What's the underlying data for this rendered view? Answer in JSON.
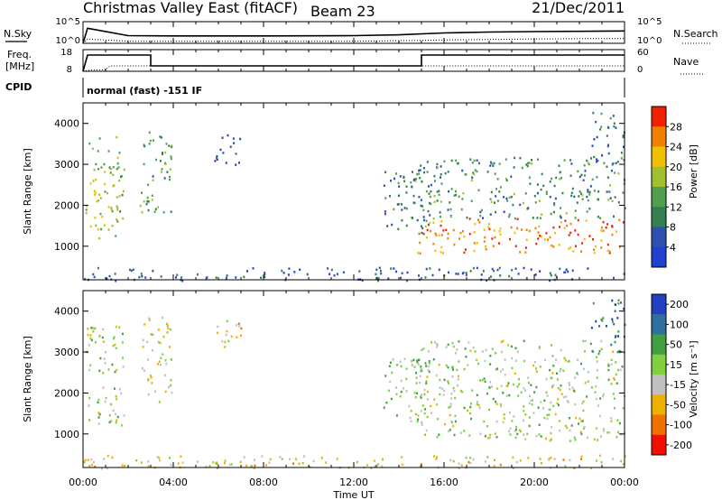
{
  "header": {
    "title": "Christmas Valley East (fitACF)",
    "beam": "Beam 23",
    "date": "21/Dec/2011"
  },
  "noise_panel": {
    "left_label": "N.Sky",
    "right_label": "N.Search",
    "left_ticks": [
      "10^5",
      "10^0"
    ],
    "right_ticks": [
      "10^5",
      "10^0"
    ]
  },
  "freq_panel": {
    "left_label_1": "Freq.",
    "left_label_2": "[MHz]",
    "right_label": "Nave",
    "left_ticks": [
      "18",
      "8"
    ],
    "right_ticks": [
      "60",
      "0"
    ]
  },
  "cpid": {
    "label": "CPID",
    "mode": "normal (fast) -151 IF"
  },
  "power_panel": {
    "ylabel": "Slant Range [km]",
    "yticks": [
      "1000",
      "2000",
      "3000",
      "4000"
    ],
    "cbar_label": "Power [dB]",
    "cbar_ticks": [
      "4",
      "8",
      "12",
      "16",
      "20",
      "24",
      "28"
    ],
    "colors": [
      "#2040d0",
      "#3050b0",
      "#308050",
      "#50a050",
      "#a0c030",
      "#f0c000",
      "#f08000",
      "#f02000"
    ]
  },
  "velocity_panel": {
    "ylabel": "Slant Range [km]",
    "yticks": [
      "1000",
      "2000",
      "3000",
      "4000"
    ],
    "cbar_label": "Velocity [m s⁻¹]",
    "cbar_ticks": [
      "200",
      "100",
      "50",
      "15",
      "-15",
      "-50",
      "-100",
      "-200"
    ],
    "colors": [
      "#2040c0",
      "#3070a0",
      "#40a040",
      "#80d040",
      "#c0c0c0",
      "#f0b000",
      "#f07000",
      "#f01000"
    ]
  },
  "xaxis": {
    "label": "Time UT",
    "ticks": [
      "00:00",
      "04:00",
      "08:00",
      "12:00",
      "16:00",
      "20:00",
      "00:00"
    ]
  },
  "chart_data": [
    {
      "type": "line",
      "title": "",
      "series": [
        {
          "name": "N.Sky",
          "x": [
            0,
            0.2,
            2,
            4,
            8,
            12,
            14,
            16,
            18,
            20,
            22,
            24
          ],
          "values": [
            1,
            3000,
            60,
            50,
            50,
            60,
            90,
            250,
            400,
            500,
            600,
            700
          ]
        },
        {
          "name": "N.Search",
          "x": [
            0,
            0.2,
            2,
            4,
            8,
            12,
            14,
            16,
            18,
            20,
            22,
            24
          ],
          "values": [
            1,
            10,
            3,
            3,
            3,
            3,
            4,
            6,
            8,
            10,
            12,
            12
          ]
        }
      ],
      "ylim": [
        1,
        100000
      ],
      "yscale": "log",
      "xlim": [
        0,
        24
      ]
    },
    {
      "type": "line",
      "series": [
        {
          "name": "Freq.",
          "x": [
            0,
            0.2,
            3,
            3,
            15,
            15,
            24
          ],
          "values": [
            8,
            15.5,
            15.5,
            10.5,
            10.5,
            15.5,
            15.5
          ]
        },
        {
          "name": "Nave",
          "x": [
            0,
            0.4,
            1,
            1.2,
            24
          ],
          "values": [
            0,
            4,
            4,
            15,
            15
          ]
        }
      ],
      "ylim": [
        8,
        18
      ],
      "y2lim": [
        0,
        60
      ],
      "xlim": [
        0,
        24
      ]
    },
    {
      "type": "heatmap",
      "variable": "Power [dB]",
      "xlabel": "Time UT",
      "ylabel": "Slant Range [km]",
      "xlim": [
        0,
        24
      ],
      "ylim": [
        180,
        4500
      ],
      "zlim": [
        0,
        30
      ],
      "regions": [
        {
          "t": [
            0.1,
            1.8
          ],
          "r": [
            1200,
            3700
          ],
          "z": 16
        },
        {
          "t": [
            2.5,
            3.9
          ],
          "r": [
            1800,
            3900
          ],
          "z": 12
        },
        {
          "t": [
            5.8,
            7.0
          ],
          "r": [
            3000,
            3800
          ],
          "z": 5
        },
        {
          "t": [
            13.3,
            15.4
          ],
          "r": [
            1300,
            2900
          ],
          "z": 9
        },
        {
          "t": [
            14.8,
            24
          ],
          "r": [
            850,
            1700
          ],
          "z": 24
        },
        {
          "t": [
            14.5,
            24
          ],
          "r": [
            1700,
            3200
          ],
          "z": 11
        },
        {
          "t": [
            22.5,
            24
          ],
          "r": [
            3000,
            4300
          ],
          "z": 8
        },
        {
          "t": [
            0,
            24
          ],
          "r": [
            180,
            500
          ],
          "z": 6
        }
      ]
    },
    {
      "type": "heatmap",
      "variable": "Velocity [m s⁻¹]",
      "xlabel": "Time UT",
      "ylabel": "Slant Range [km]",
      "xlim": [
        0,
        24
      ],
      "ylim": [
        180,
        4500
      ],
      "zlim": [
        -200,
        200
      ],
      "regions": [
        {
          "t": [
            0.1,
            1.8
          ],
          "r": [
            1200,
            3700
          ],
          "z": 0
        },
        {
          "t": [
            2.5,
            3.9
          ],
          "r": [
            1800,
            3900
          ],
          "z": -30
        },
        {
          "t": [
            5.8,
            7.0
          ],
          "r": [
            3000,
            3800
          ],
          "z": -40
        },
        {
          "t": [
            13.3,
            15.4
          ],
          "r": [
            1300,
            2900
          ],
          "z": 30
        },
        {
          "t": [
            14.8,
            24
          ],
          "r": [
            850,
            1800
          ],
          "z": 0
        },
        {
          "t": [
            14.5,
            24
          ],
          "r": [
            1800,
            3300
          ],
          "z": 5
        },
        {
          "t": [
            22.5,
            24
          ],
          "r": [
            3000,
            4300
          ],
          "z": 120
        },
        {
          "t": [
            0,
            24
          ],
          "r": [
            180,
            500
          ],
          "z": -40
        }
      ]
    }
  ]
}
